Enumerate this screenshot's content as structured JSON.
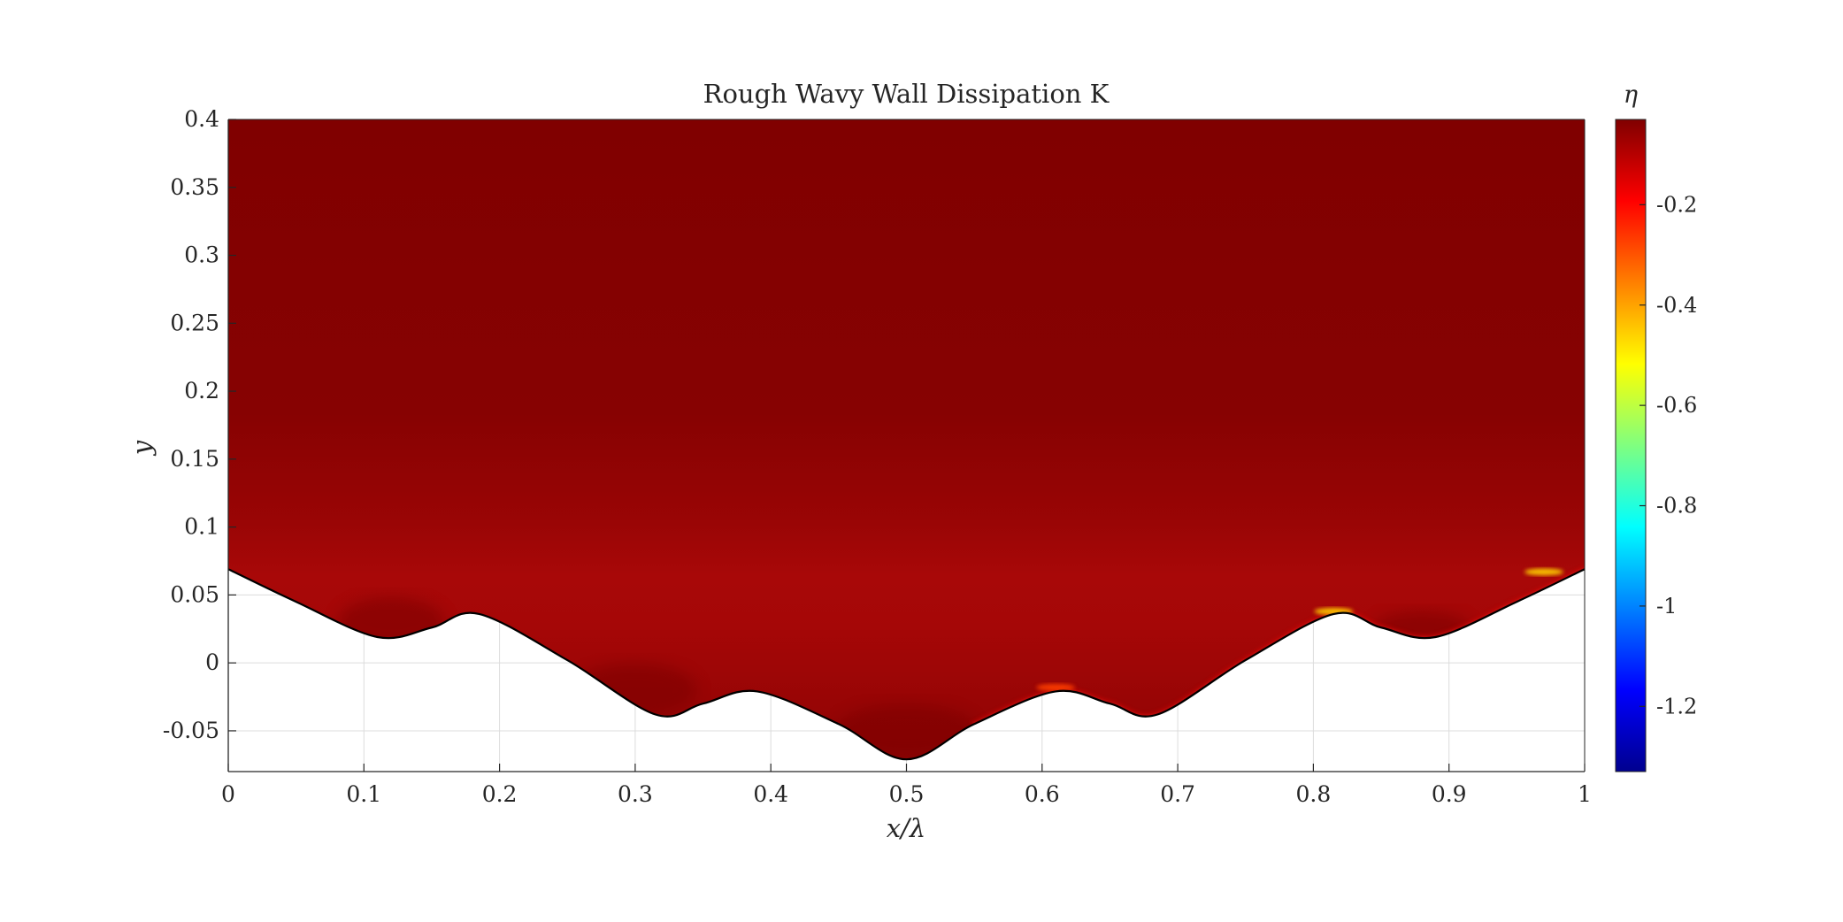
{
  "chart_data": {
    "type": "heatmap",
    "title": "Rough Wavy Wall Dissipation K",
    "xlabel": "x/λ",
    "ylabel": "y",
    "colorbar_label": "η",
    "colormap": "jet",
    "xlim": [
      0,
      1
    ],
    "ylim": [
      -0.08,
      0.4
    ],
    "clim": [
      -1.33,
      -0.03
    ],
    "grid": true,
    "x_ticks": [
      0,
      0.1,
      0.2,
      0.3,
      0.4,
      0.5,
      0.6,
      0.7,
      0.8,
      0.9,
      1
    ],
    "x_tick_labels": [
      "0",
      "0.1",
      "0.2",
      "0.3",
      "0.4",
      "0.5",
      "0.6",
      "0.7",
      "0.8",
      "0.9",
      "1"
    ],
    "y_ticks": [
      -0.05,
      0,
      0.05,
      0.1,
      0.15,
      0.2,
      0.25,
      0.3,
      0.35,
      0.4
    ],
    "y_tick_labels": [
      "-0.05",
      "0",
      "0.05",
      "0.1",
      "0.15",
      "0.2",
      "0.25",
      "0.3",
      "0.35",
      "0.4"
    ],
    "colorbar_ticks": [
      -1.2,
      -1,
      -0.8,
      -0.6,
      -0.4,
      -0.2
    ],
    "colorbar_tick_labels": [
      "-1.2",
      "-1",
      "-0.8",
      "-0.6",
      "-0.4",
      "-0.2"
    ],
    "wall_profile": {
      "x": [
        0,
        0.05,
        0.11,
        0.15,
        0.185,
        0.25,
        0.315,
        0.35,
        0.39,
        0.45,
        0.5,
        0.55,
        0.61,
        0.65,
        0.685,
        0.75,
        0.815,
        0.85,
        0.89,
        0.95,
        1
      ],
      "y": [
        0.069,
        0.045,
        0.019,
        0.026,
        0.036,
        0.002,
        -0.038,
        -0.03,
        -0.021,
        -0.045,
        -0.071,
        -0.045,
        -0.021,
        -0.03,
        -0.038,
        0.002,
        0.036,
        0.026,
        0.019,
        0.045,
        0.069
      ]
    },
    "near_wall_peaks": [
      {
        "x": 0.61,
        "y": -0.02,
        "eta": -0.35
      },
      {
        "x": 0.815,
        "y": 0.036,
        "eta": -0.45
      },
      {
        "x": 0.97,
        "y": 0.065,
        "eta": -0.6
      }
    ]
  }
}
